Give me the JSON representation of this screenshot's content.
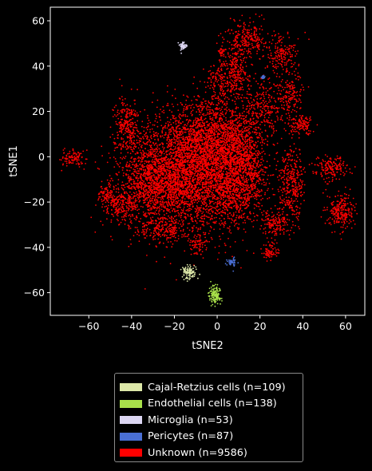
{
  "chart_data": {
    "type": "scatter",
    "title": "",
    "xlabel": "tSNE2",
    "ylabel": "tSNE1",
    "xlim": [
      -78,
      69
    ],
    "ylim": [
      -70,
      66
    ],
    "xticks": [
      -60,
      -40,
      -20,
      0,
      20,
      40,
      60
    ],
    "yticks": [
      -60,
      -40,
      -20,
      0,
      20,
      40,
      60
    ],
    "grid": false,
    "background": "#000000",
    "legend_position": "bottom-center, below plot",
    "series": [
      {
        "name": "Cajal-Retzius cells (n=109)",
        "color": "#dde8a8",
        "count": 109,
        "clusters": [
          {
            "cx": -13,
            "cy": -51,
            "sx": 1.6,
            "sy": 1.4
          }
        ]
      },
      {
        "name": "Endothelial cells (n=138)",
        "color": "#a8e04a",
        "count": 138,
        "clusters": [
          {
            "cx": -1,
            "cy": -61,
            "sx": 1.3,
            "sy": 2.0
          }
        ]
      },
      {
        "name": "Microglia (n=53)",
        "color": "#dcd6f2",
        "count": 53,
        "clusters": [
          {
            "cx": -16,
            "cy": 49,
            "sx": 0.7,
            "sy": 0.9
          }
        ]
      },
      {
        "name": "Pericytes (n=87)",
        "color": "#4a6fd4",
        "count": 87,
        "clusters": [
          {
            "cx": 7,
            "cy": -46.5,
            "sx": 1.2,
            "sy": 1.0
          },
          {
            "cx": 21.5,
            "cy": 35,
            "sx": 0.3,
            "sy": 0.3
          }
        ]
      },
      {
        "name": "Unknown (n=9586)",
        "color": "#ff0000",
        "count": 9586,
        "clusters": [
          {
            "cx": -12,
            "cy": -8,
            "sx": 14,
            "sy": 12,
            "w": 30
          },
          {
            "cx": -30,
            "cy": -12,
            "sx": 8,
            "sy": 10,
            "w": 10
          },
          {
            "cx": -5,
            "cy": 8,
            "sx": 10,
            "sy": 10,
            "w": 12
          },
          {
            "cx": 8,
            "cy": -14,
            "sx": 6,
            "sy": 8,
            "w": 6
          },
          {
            "cx": 10,
            "cy": 5,
            "sx": 6,
            "sy": 8,
            "w": 6
          },
          {
            "cx": -42,
            "cy": 14,
            "sx": 3,
            "sy": 6,
            "w": 3
          },
          {
            "cx": -45,
            "cy": -22,
            "sx": 4,
            "sy": 3,
            "w": 2
          },
          {
            "cx": -52,
            "cy": -16,
            "sx": 2,
            "sy": 2,
            "w": 0.8
          },
          {
            "cx": -67,
            "cy": -1,
            "sx": 3,
            "sy": 2,
            "w": 1
          },
          {
            "cx": -25,
            "cy": -32,
            "sx": 5,
            "sy": 2.5,
            "w": 1.5
          },
          {
            "cx": -9,
            "cy": -38,
            "sx": 2,
            "sy": 3,
            "w": 0.8
          },
          {
            "cx": 14,
            "cy": 52,
            "sx": 5,
            "sy": 4,
            "w": 2.5
          },
          {
            "cx": 10,
            "cy": 38,
            "sx": 3,
            "sy": 6,
            "w": 1.8
          },
          {
            "cx": 3,
            "cy": 33,
            "sx": 4,
            "sy": 5,
            "w": 2
          },
          {
            "cx": 2,
            "cy": 46,
            "sx": 1,
            "sy": 1,
            "w": 0.3
          },
          {
            "cx": 23,
            "cy": 22,
            "sx": 6,
            "sy": 7,
            "w": 3
          },
          {
            "cx": 30,
            "cy": 45,
            "sx": 4,
            "sy": 4,
            "w": 1.8
          },
          {
            "cx": 35,
            "cy": 27,
            "sx": 2.5,
            "sy": 5,
            "w": 1.2
          },
          {
            "cx": 40,
            "cy": 14,
            "sx": 3,
            "sy": 2,
            "w": 1.2
          },
          {
            "cx": 35,
            "cy": -12,
            "sx": 3,
            "sy": 8,
            "w": 3.5
          },
          {
            "cx": 27,
            "cy": -30,
            "sx": 3,
            "sy": 3,
            "w": 1.5
          },
          {
            "cx": 25,
            "cy": -42,
            "sx": 2,
            "sy": 2,
            "w": 0.8
          },
          {
            "cx": 53,
            "cy": -5,
            "sx": 4,
            "sy": 2.5,
            "w": 1.8
          },
          {
            "cx": 58,
            "cy": -24,
            "sx": 3,
            "sy": 4,
            "w": 2.5
          },
          {
            "cx": 16,
            "cy": -8,
            "sx": 4,
            "sy": 6,
            "w": 2
          }
        ]
      }
    ]
  }
}
